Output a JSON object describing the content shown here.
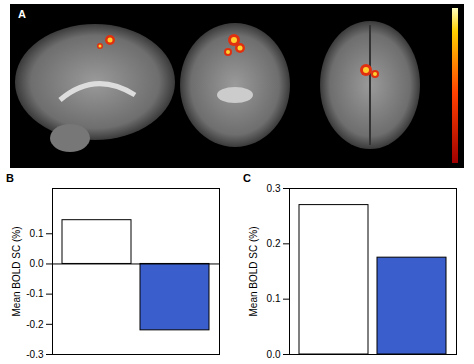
{
  "panel_a": {
    "label": "A"
  },
  "chart_data": [
    {
      "type": "bar",
      "title": "B",
      "categories": [
        null,
        null
      ],
      "values": [
        0.145,
        -0.22
      ],
      "colors": [
        "#ffffff",
        "#3a5fcd"
      ],
      "y_label": "Mean BOLD SC (%)",
      "ylim": [
        -0.3,
        0.25
      ],
      "yticks": [
        -0.3,
        -0.2,
        -0.1,
        {
          "value": 0,
          "label": "0.0"
        },
        0.1
      ],
      "tick_labels": "y"
    },
    {
      "type": "bar",
      "title": "C",
      "categories": [
        null,
        null
      ],
      "values": [
        0.27,
        0.175
      ],
      "colors": [
        "#ffffff",
        "#3a5fcd"
      ],
      "y_label": "Mean BOLD SC (%)",
      "ylim": [
        0,
        0.3
      ],
      "yticks": [
        {
          "value": 0,
          "label": "0.0"
        },
        0.1,
        0.2,
        0.3
      ],
      "tick_labels": "y"
    }
  ]
}
